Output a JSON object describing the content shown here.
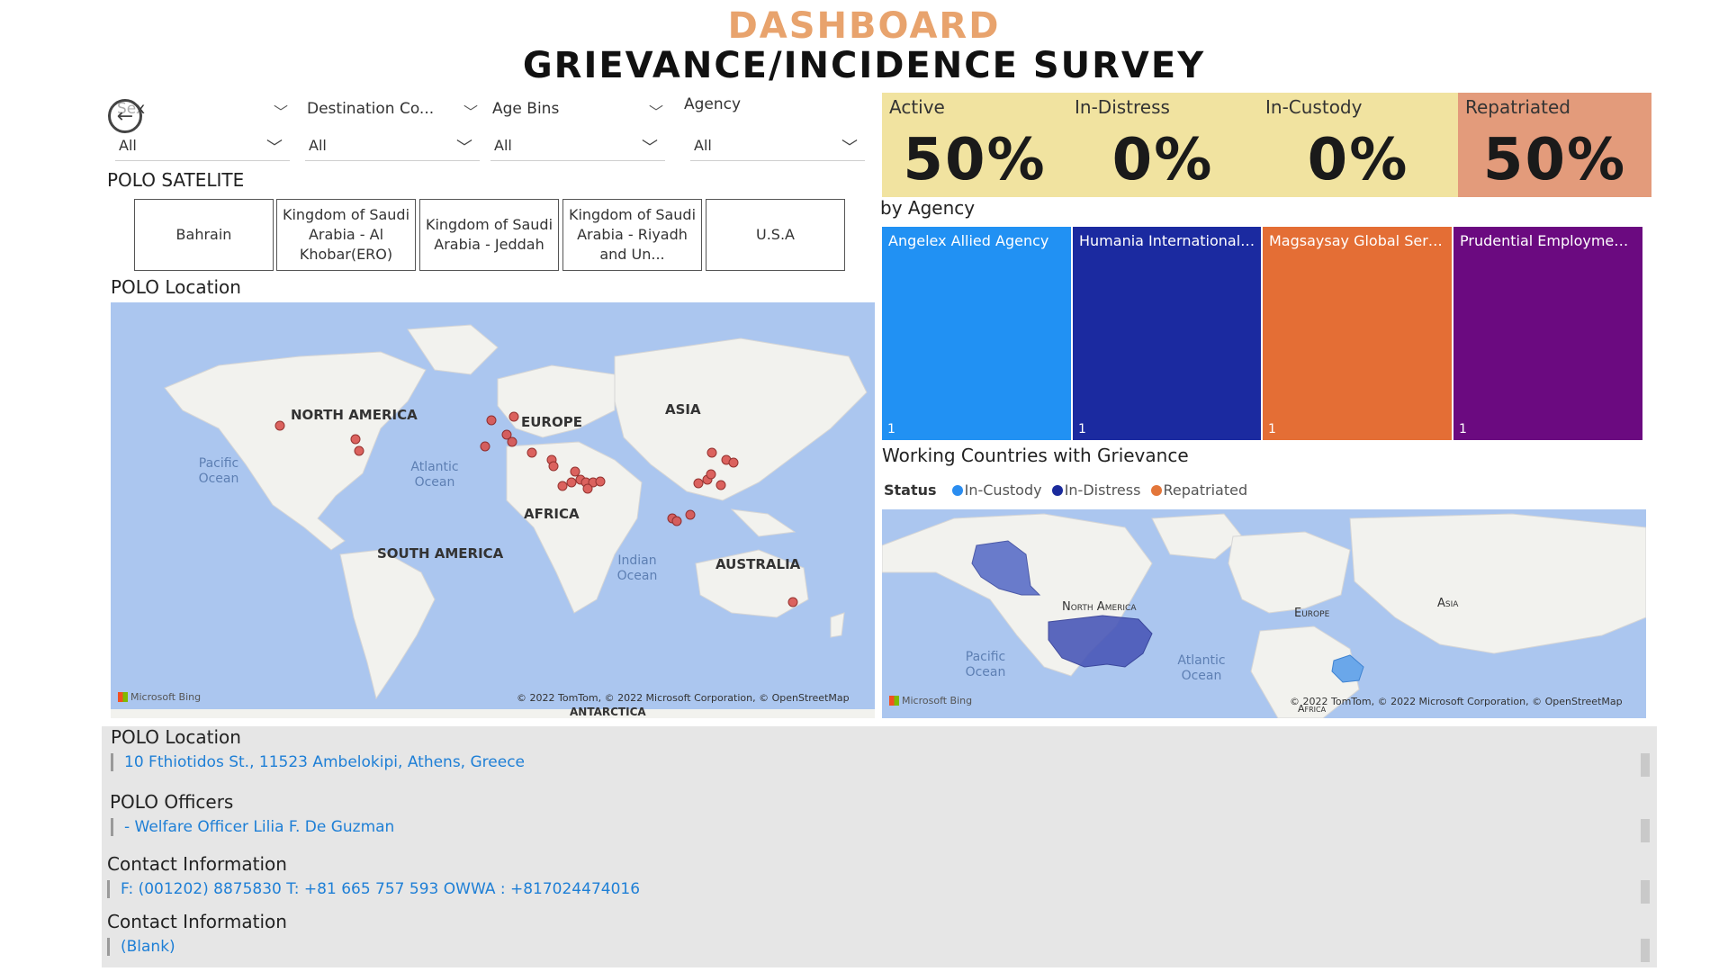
{
  "header": {
    "title": "DASHBOARD",
    "subtitle": "GRIEVANCE/INCIDENCE SURVEY"
  },
  "slicers": [
    {
      "label": "Sex",
      "value": "All"
    },
    {
      "label": "Destination Co...",
      "value": "All"
    },
    {
      "label": "Age Bins",
      "value": "All"
    },
    {
      "label": "Agency",
      "value": "All"
    }
  ],
  "polo_satelite": {
    "title": "POLO SATELITE",
    "buttons": [
      "Bahrain",
      "Kingdom of Saudi Arabia - Al Khobar(ERO)",
      "Kingdom of Saudi Arabia - Jeddah",
      "Kingdom of Saudi Arabia - Riyadh and Un...",
      "U.S.A"
    ]
  },
  "polo_map": {
    "title": "POLO Location",
    "labels": {
      "north_america": "NORTH AMERICA",
      "europe": "EUROPE",
      "asia": "ASIA",
      "africa": "AFRICA",
      "south_america": "SOUTH AMERICA",
      "australia": "AUSTRALIA",
      "antarctica": "ANTARCTICA",
      "pacific": "Pacific Ocean",
      "atlantic": "Atlantic Ocean",
      "indian": "Indian Ocean"
    },
    "attribution": "© 2022 TomTom, © 2022 Microsoft Corporation, © OpenStreetMap",
    "bing": "Microsoft Bing",
    "marker_color": "#d9534f"
  },
  "kpis": [
    {
      "label": "Active",
      "value": "50%",
      "color": "#f1e3a0"
    },
    {
      "label": "In-Distress",
      "value": "0%",
      "color": "#f1e3a0"
    },
    {
      "label": "In-Custody",
      "value": "0%",
      "color": "#f1e3a0"
    },
    {
      "label": "Repatriated",
      "value": "50%",
      "color": "#e39b7b"
    }
  ],
  "agency": {
    "title": "by Agency",
    "tiles": [
      {
        "label": "Angelex Allied Agency",
        "count": "1",
        "color": "#2191f3"
      },
      {
        "label": "Humania International ...",
        "count": "1",
        "color": "#1b2aa0"
      },
      {
        "label": "Magsaysay Global Serv...",
        "count": "1",
        "color": "#e46e35"
      },
      {
        "label": "Prudential Employment...",
        "count": "1",
        "color": "#6b0a80"
      }
    ]
  },
  "working_countries": {
    "title": "Working Countries with Grievance",
    "legend_title": "Status",
    "legend": [
      {
        "label": "In-Custody",
        "color": "#2a8df0"
      },
      {
        "label": "In-Distress",
        "color": "#1a2a9c"
      },
      {
        "label": "Repatriated",
        "color": "#e3763a"
      }
    ],
    "labels": {
      "north_america": "North America",
      "europe": "Europe",
      "asia": "Asia",
      "africa": "Africa",
      "pacific": "Pacific Ocean",
      "atlantic": "Atlantic Ocean"
    },
    "attribution": "© 2022 TomTom, © 2022 Microsoft Corporation, © OpenStreetMap",
    "bing": "Microsoft Bing"
  },
  "info": [
    {
      "title": "POLO Location",
      "value": "10 Fthiotidos St., 11523 Ambelokipi, Athens, Greece"
    },
    {
      "title": "POLO Officers",
      "value": "- Welfare Officer Lilia F. De Guzman"
    },
    {
      "title": "Contact Information",
      "value": "F: (001202) 8875830 T: +81 665 757 593 OWWA : +817024474016"
    },
    {
      "title": "Contact Information",
      "value": "(Blank)"
    }
  ]
}
